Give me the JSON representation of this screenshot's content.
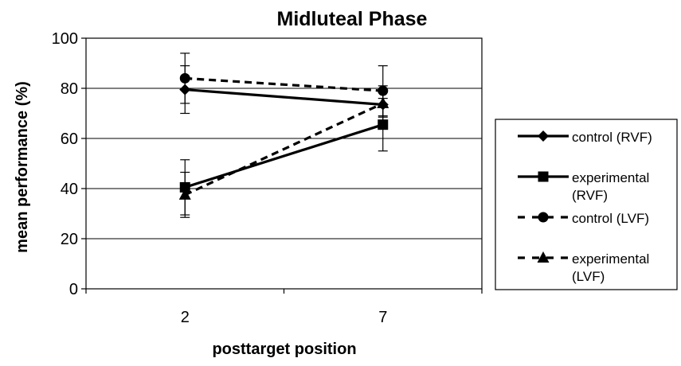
{
  "chart_data": {
    "type": "line",
    "title": "Midluteal Phase",
    "xlabel": "posttarget position",
    "ylabel": "mean performance (%)",
    "categories": [
      "2",
      "7"
    ],
    "ylim": [
      0,
      100
    ],
    "yticks": [
      0,
      20,
      40,
      60,
      80,
      100
    ],
    "grid": "horizontal",
    "legend_position": "right",
    "series": [
      {
        "name": "control (RVF)",
        "marker": "diamond",
        "line": "solid",
        "values": [
          79.5,
          73.5
        ],
        "err": [
          9.5,
          5
        ]
      },
      {
        "name": "experimental (RVF)",
        "marker": "square",
        "line": "solid",
        "values": [
          40.5,
          65.5
        ],
        "err": [
          11,
          10.5
        ]
      },
      {
        "name": "control (LVF)",
        "marker": "circle",
        "line": "dashed",
        "values": [
          84,
          79
        ],
        "err": [
          10,
          10
        ]
      },
      {
        "name": "experimental (LVF)",
        "marker": "triangle",
        "line": "dashed",
        "values": [
          37.5,
          74
        ],
        "err": [
          9,
          7
        ]
      }
    ],
    "legend_lines": [
      [
        "control (RVF)"
      ],
      [
        "experimental",
        "(RVF)"
      ],
      [
        "control (LVF)"
      ],
      [
        "experimental",
        "(LVF)"
      ]
    ],
    "colors": {
      "line": "#000000",
      "grid": "#000000",
      "background": "#ffffff"
    }
  }
}
